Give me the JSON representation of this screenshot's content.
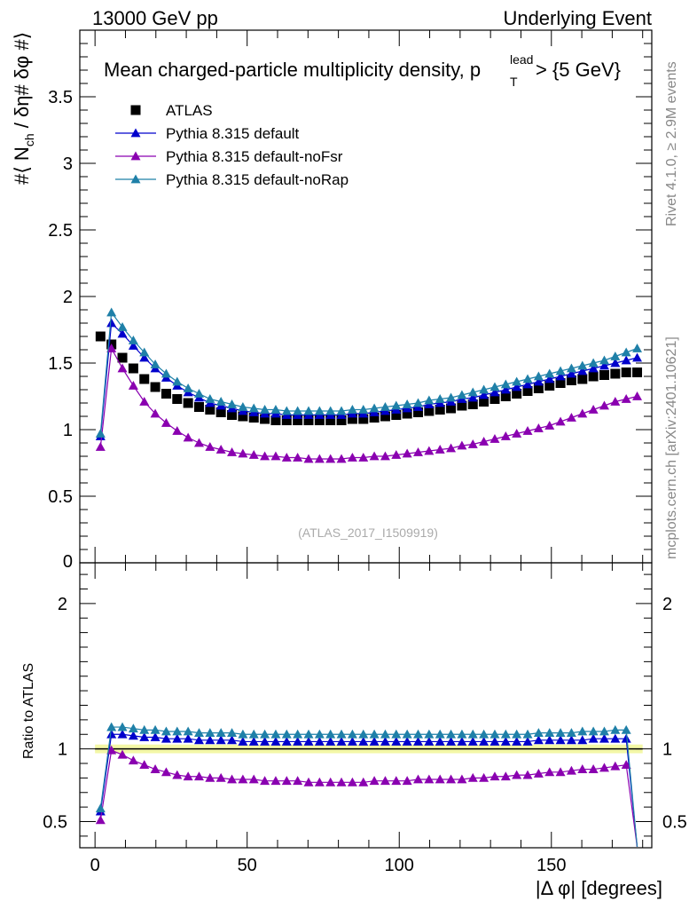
{
  "header": {
    "left": "13000 GeV pp",
    "right": "Underlying Event"
  },
  "side_labels": {
    "rivet": "Rivet 4.1.0, ≥ 2.9M events",
    "mcplots": "mcplots.cern.ch [arXiv:2401.10621]"
  },
  "chart_data": [
    {
      "type": "scatter",
      "panel": "main",
      "title": "Mean charged-particle multiplicity density, p_T^lead > {5 GeV}",
      "title_text": "Mean charged-particle multiplicity density, p",
      "title_sup": "lead",
      "title_sub": "T",
      "title_tail": " > {5 GeV}",
      "ylabel": "#⟨ N_ch / δη# δφ #⟩",
      "ylabel_parts": {
        "a": "#⟨ N",
        "sub": "ch",
        "b": " / δη# δφ #⟩"
      },
      "xlabel": "",
      "xlim": [
        -5,
        183
      ],
      "ylim": [
        0,
        4
      ],
      "yticks": [
        "0.5",
        "1",
        "1.5",
        "2",
        "2.5",
        "3",
        "3.5"
      ],
      "ytick_values": [
        0.5,
        1,
        1.5,
        2,
        2.5,
        3,
        3.5
      ],
      "ytick_zero": "0",
      "watermark": "(ATLAS_2017_I1509919)",
      "legend_position": "top-left",
      "x": [
        1.8,
        5.4,
        9.0,
        12.6,
        16.2,
        19.8,
        23.4,
        27.0,
        30.6,
        34.2,
        37.8,
        41.4,
        45.0,
        48.6,
        52.2,
        55.8,
        59.4,
        63.0,
        66.6,
        70.2,
        73.8,
        77.4,
        81.0,
        84.6,
        88.2,
        91.8,
        95.4,
        99.0,
        102.6,
        106.2,
        109.8,
        113.4,
        117.0,
        120.6,
        124.2,
        127.8,
        131.4,
        135.0,
        138.6,
        142.2,
        145.8,
        149.4,
        153.0,
        156.6,
        160.2,
        163.8,
        167.4,
        171.0,
        174.6,
        178.2
      ],
      "series": [
        {
          "name": "ATLAS",
          "marker": "square",
          "color": "#000000",
          "line": false,
          "values": [
            1.7,
            1.64,
            1.54,
            1.46,
            1.38,
            1.32,
            1.27,
            1.23,
            1.2,
            1.17,
            1.15,
            1.13,
            1.11,
            1.1,
            1.09,
            1.08,
            1.07,
            1.07,
            1.07,
            1.07,
            1.07,
            1.07,
            1.07,
            1.08,
            1.08,
            1.09,
            1.1,
            1.11,
            1.12,
            1.13,
            1.14,
            1.15,
            1.16,
            1.18,
            1.19,
            1.21,
            1.23,
            1.25,
            1.27,
            1.29,
            1.31,
            1.33,
            1.35,
            1.37,
            1.38,
            1.4,
            1.41,
            1.42,
            1.43,
            1.43
          ]
        },
        {
          "name": "Pythia 8.315 default",
          "marker": "triangle",
          "color": "#0000cc",
          "line": true,
          "values": [
            0.95,
            1.8,
            1.72,
            1.63,
            1.54,
            1.46,
            1.39,
            1.33,
            1.28,
            1.24,
            1.2,
            1.18,
            1.16,
            1.14,
            1.13,
            1.12,
            1.12,
            1.11,
            1.11,
            1.11,
            1.11,
            1.11,
            1.11,
            1.12,
            1.12,
            1.13,
            1.14,
            1.15,
            1.16,
            1.17,
            1.19,
            1.2,
            1.21,
            1.23,
            1.24,
            1.26,
            1.28,
            1.3,
            1.32,
            1.34,
            1.36,
            1.38,
            1.4,
            1.42,
            1.44,
            1.46,
            1.48,
            1.5,
            1.52,
            1.54
          ]
        },
        {
          "name": "Pythia 8.315 default-noFsr",
          "marker": "triangle",
          "color": "#8a00b0",
          "line": true,
          "values": [
            0.87,
            1.61,
            1.46,
            1.33,
            1.21,
            1.12,
            1.05,
            0.99,
            0.94,
            0.9,
            0.87,
            0.85,
            0.83,
            0.82,
            0.81,
            0.8,
            0.8,
            0.79,
            0.79,
            0.78,
            0.78,
            0.78,
            0.78,
            0.79,
            0.79,
            0.8,
            0.8,
            0.81,
            0.82,
            0.83,
            0.84,
            0.85,
            0.86,
            0.88,
            0.89,
            0.91,
            0.93,
            0.95,
            0.97,
            0.99,
            1.01,
            1.03,
            1.06,
            1.09,
            1.12,
            1.15,
            1.18,
            1.21,
            1.23,
            1.25
          ]
        },
        {
          "name": "Pythia 8.315 default-noRap",
          "marker": "triangle",
          "color": "#1f80a8",
          "line": true,
          "values": [
            0.97,
            1.88,
            1.77,
            1.67,
            1.58,
            1.49,
            1.42,
            1.36,
            1.31,
            1.27,
            1.23,
            1.21,
            1.19,
            1.17,
            1.16,
            1.15,
            1.15,
            1.14,
            1.14,
            1.14,
            1.14,
            1.14,
            1.14,
            1.15,
            1.15,
            1.16,
            1.17,
            1.18,
            1.19,
            1.2,
            1.22,
            1.23,
            1.24,
            1.26,
            1.28,
            1.3,
            1.32,
            1.34,
            1.36,
            1.38,
            1.4,
            1.42,
            1.44,
            1.46,
            1.48,
            1.5,
            1.52,
            1.55,
            1.58,
            1.61
          ]
        }
      ]
    },
    {
      "type": "line",
      "panel": "ratio",
      "ylabel": "Ratio to ATLAS",
      "xlabel": "|Δ φ| [degrees]",
      "xlim": [
        -5,
        183
      ],
      "ylim": [
        0.32,
        2.28
      ],
      "yticks": [
        "0.5",
        "1",
        "2"
      ],
      "ytick_values": [
        0.5,
        1,
        2
      ],
      "xticks": [
        "0",
        "50",
        "100",
        "150"
      ],
      "xtick_values": [
        0,
        50,
        100,
        150
      ],
      "reference": 1.0,
      "reference_band": [
        0.97,
        1.03
      ],
      "x": [
        1.8,
        5.4,
        9.0,
        12.6,
        16.2,
        19.8,
        23.4,
        27.0,
        30.6,
        34.2,
        37.8,
        41.4,
        45.0,
        48.6,
        52.2,
        55.8,
        59.4,
        63.0,
        66.6,
        70.2,
        73.8,
        77.4,
        81.0,
        84.6,
        88.2,
        91.8,
        95.4,
        99.0,
        102.6,
        106.2,
        109.8,
        113.4,
        117.0,
        120.6,
        124.2,
        127.8,
        131.4,
        135.0,
        138.6,
        142.2,
        145.8,
        149.4,
        153.0,
        156.6,
        160.2,
        163.8,
        167.4,
        171.0,
        174.6,
        178.2
      ],
      "series": [
        {
          "name": "Pythia 8.315 default",
          "color": "#0000cc",
          "values": [
            0.57,
            1.1,
            1.1,
            1.09,
            1.08,
            1.08,
            1.07,
            1.07,
            1.07,
            1.06,
            1.06,
            1.06,
            1.06,
            1.05,
            1.05,
            1.05,
            1.05,
            1.05,
            1.05,
            1.05,
            1.05,
            1.05,
            1.05,
            1.05,
            1.05,
            1.05,
            1.05,
            1.05,
            1.05,
            1.05,
            1.05,
            1.05,
            1.05,
            1.05,
            1.05,
            1.05,
            1.05,
            1.05,
            1.05,
            1.05,
            1.06,
            1.06,
            1.06,
            1.06,
            1.06,
            1.07,
            1.07,
            1.07,
            1.07,
            0.3
          ]
        },
        {
          "name": "Pythia 8.315 default-noFsr",
          "color": "#8a00b0",
          "values": [
            0.51,
            0.99,
            0.96,
            0.92,
            0.89,
            0.86,
            0.84,
            0.82,
            0.81,
            0.81,
            0.8,
            0.8,
            0.79,
            0.79,
            0.79,
            0.78,
            0.78,
            0.78,
            0.78,
            0.77,
            0.77,
            0.77,
            0.77,
            0.77,
            0.77,
            0.78,
            0.78,
            0.78,
            0.78,
            0.79,
            0.79,
            0.79,
            0.79,
            0.79,
            0.8,
            0.8,
            0.81,
            0.81,
            0.82,
            0.82,
            0.83,
            0.84,
            0.84,
            0.85,
            0.86,
            0.86,
            0.87,
            0.88,
            0.89,
            0.3
          ]
        },
        {
          "name": "Pythia 8.315 default-noRap",
          "color": "#1f80a8",
          "values": [
            0.59,
            1.15,
            1.15,
            1.14,
            1.13,
            1.13,
            1.12,
            1.12,
            1.12,
            1.11,
            1.11,
            1.11,
            1.11,
            1.1,
            1.1,
            1.1,
            1.1,
            1.1,
            1.1,
            1.1,
            1.1,
            1.1,
            1.1,
            1.1,
            1.1,
            1.1,
            1.1,
            1.1,
            1.1,
            1.1,
            1.1,
            1.1,
            1.1,
            1.1,
            1.1,
            1.1,
            1.1,
            1.1,
            1.1,
            1.1,
            1.11,
            1.11,
            1.11,
            1.11,
            1.12,
            1.12,
            1.12,
            1.13,
            1.13,
            0.3
          ]
        }
      ]
    }
  ]
}
